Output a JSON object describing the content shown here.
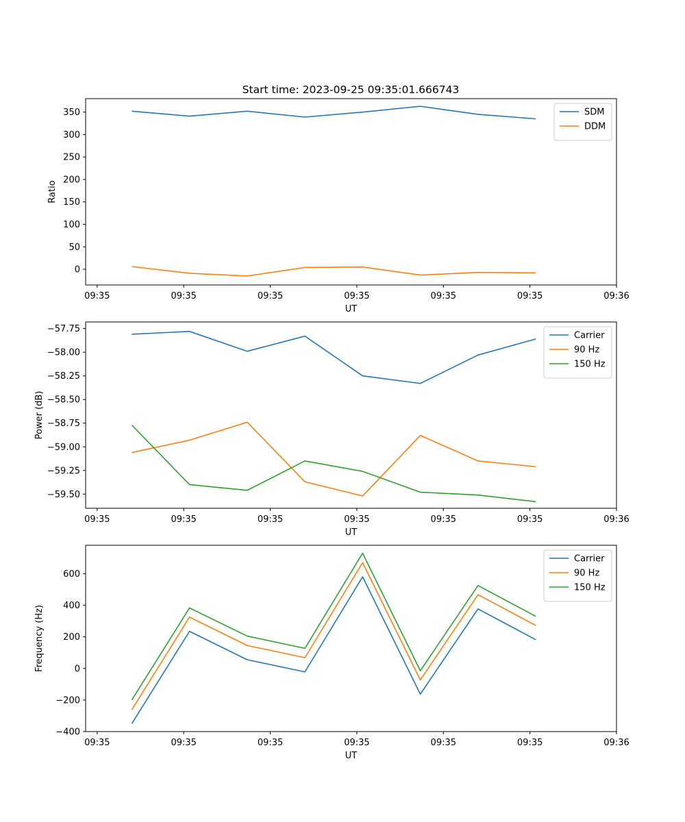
{
  "colors": {
    "blue": "#1f77b4",
    "orange": "#ff7f0e",
    "green": "#2ca02c"
  },
  "chart_data": [
    {
      "type": "line",
      "title": "Start time: 2023-09-25 09:35:01.666743",
      "xlabel": "UT",
      "ylabel": "Ratio",
      "xlim": [
        -0.1,
        4.5
      ],
      "ylim": [
        -35,
        380
      ],
      "x": [
        0.3,
        0.8,
        1.3,
        1.8,
        2.3,
        2.8,
        3.3,
        3.8
      ],
      "x_ticks": [
        0,
        0.75,
        1.5,
        2.25,
        3.0,
        3.75,
        4.5
      ],
      "x_tick_labels": [
        "09:35",
        "09:35",
        "09:35",
        "09:35",
        "09:35",
        "09:35",
        "09:36"
      ],
      "y_ticks": [
        0,
        50,
        100,
        150,
        200,
        250,
        300,
        350
      ],
      "y_tick_labels": [
        "0",
        "50",
        "100",
        "150",
        "200",
        "250",
        "300",
        "350"
      ],
      "legend_position": "top-right",
      "series": [
        {
          "name": "SDM",
          "color": "#1f77b4",
          "values": [
            352,
            341,
            352,
            339,
            350,
            363,
            345,
            335
          ]
        },
        {
          "name": "DDM",
          "color": "#ff7f0e",
          "values": [
            6,
            -9,
            -15,
            4,
            5,
            -13,
            -7,
            -8
          ]
        }
      ]
    },
    {
      "type": "line",
      "title": "",
      "xlabel": "UT",
      "ylabel": "Power (dB)",
      "xlim": [
        -0.1,
        4.5
      ],
      "ylim": [
        -59.65,
        -57.68
      ],
      "x": [
        0.3,
        0.8,
        1.3,
        1.8,
        2.3,
        2.8,
        3.3,
        3.8
      ],
      "x_ticks": [
        0,
        0.75,
        1.5,
        2.25,
        3.0,
        3.75,
        4.5
      ],
      "x_tick_labels": [
        "09:35",
        "09:35",
        "09:35",
        "09:35",
        "09:35",
        "09:35",
        "09:36"
      ],
      "y_ticks": [
        -57.75,
        -58.0,
        -58.25,
        -58.5,
        -58.75,
        -59.0,
        -59.25,
        -59.5
      ],
      "y_tick_labels": [
        "−57.75",
        "−58.00",
        "−58.25",
        "−58.50",
        "−58.75",
        "−59.00",
        "−59.25",
        "−59.50"
      ],
      "legend_position": "top-right",
      "series": [
        {
          "name": "Carrier",
          "color": "#1f77b4",
          "values": [
            -57.81,
            -57.78,
            -57.99,
            -57.83,
            -58.25,
            -58.33,
            -58.03,
            -57.86
          ]
        },
        {
          "name": "90 Hz",
          "color": "#ff7f0e",
          "values": [
            -59.06,
            -58.93,
            -58.74,
            -59.37,
            -59.52,
            -58.88,
            -59.15,
            -59.21
          ]
        },
        {
          "name": "150 Hz",
          "color": "#2ca02c",
          "values": [
            -58.77,
            -59.4,
            -59.46,
            -59.15,
            -59.26,
            -59.48,
            -59.51,
            -59.58
          ]
        }
      ]
    },
    {
      "type": "line",
      "title": "",
      "xlabel": "UT",
      "ylabel": "Frequency (Hz)",
      "xlim": [
        -0.1,
        4.5
      ],
      "ylim": [
        -400,
        780
      ],
      "x": [
        0.3,
        0.8,
        1.3,
        1.8,
        2.3,
        2.8,
        3.3,
        3.8
      ],
      "x_ticks": [
        0,
        0.75,
        1.5,
        2.25,
        3.0,
        3.75,
        4.5
      ],
      "x_tick_labels": [
        "09:35",
        "09:35",
        "09:35",
        "09:35",
        "09:35",
        "09:35",
        "09:36"
      ],
      "y_ticks": [
        -400,
        -200,
        0,
        200,
        400,
        600
      ],
      "y_tick_labels": [
        "−400",
        "−200",
        "0",
        "200",
        "400",
        "600"
      ],
      "legend_position": "top-right",
      "series": [
        {
          "name": "Carrier",
          "color": "#1f77b4",
          "values": [
            -350,
            235,
            55,
            -22,
            580,
            -163,
            377,
            182
          ]
        },
        {
          "name": "90 Hz",
          "color": "#ff7f0e",
          "values": [
            -262,
            325,
            145,
            68,
            670,
            -73,
            467,
            272
          ]
        },
        {
          "name": "150 Hz",
          "color": "#2ca02c",
          "values": [
            -200,
            383,
            205,
            127,
            730,
            -15,
            525,
            330
          ]
        }
      ]
    }
  ]
}
